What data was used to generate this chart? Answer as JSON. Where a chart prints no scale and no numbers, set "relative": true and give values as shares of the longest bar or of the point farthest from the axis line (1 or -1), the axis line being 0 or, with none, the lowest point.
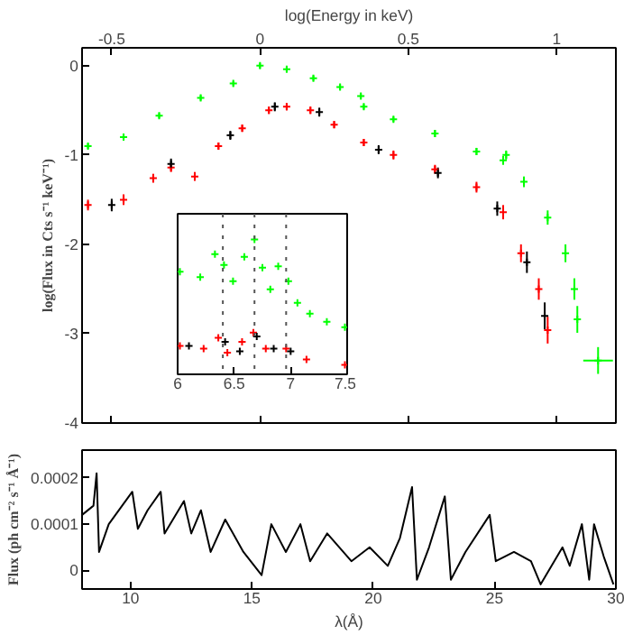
{
  "chart_data": [
    {
      "type": "scatter",
      "xlabel": "log(Energy in keV)",
      "ylabel": "log(Flux in Cts s⁻¹ keV⁻¹)",
      "xlim": [
        -0.6,
        1.2
      ],
      "xticks": [
        -0.5,
        0,
        0.5,
        1
      ],
      "ylim": [
        -4,
        0.2
      ],
      "yticks": [
        -4,
        -3,
        -2,
        -1,
        0
      ],
      "marker": "cross",
      "grid": false,
      "series": [
        {
          "color": "#00ff00",
          "x": [
            -0.58,
            -0.46,
            -0.34,
            -0.2,
            -0.09,
            0.0,
            0.09,
            0.18,
            0.27,
            0.34,
            0.35,
            0.45,
            0.59,
            0.73,
            0.82,
            0.83,
            0.89,
            0.97,
            1.03,
            1.06,
            1.07,
            1.14
          ],
          "values": [
            -0.9,
            -0.8,
            -0.56,
            -0.36,
            -0.2,
            0.0,
            -0.04,
            -0.14,
            -0.24,
            -0.34,
            -0.46,
            -0.6,
            -0.76,
            -0.96,
            -1.06,
            -1.0,
            -1.3,
            -1.7,
            -2.1,
            -2.5,
            -2.84,
            -3.3
          ],
          "errors": [
            0.03,
            0.03,
            0.03,
            0.03,
            0.03,
            0.03,
            0.03,
            0.03,
            0.03,
            0.03,
            0.03,
            0.03,
            0.04,
            0.04,
            0.05,
            0.05,
            0.06,
            0.08,
            0.1,
            0.12,
            0.15,
            0.15
          ],
          "xerrors": [
            null,
            null,
            null,
            null,
            null,
            null,
            null,
            null,
            null,
            null,
            null,
            null,
            null,
            null,
            null,
            null,
            null,
            null,
            null,
            null,
            null,
            0.05
          ]
        },
        {
          "color": "#ff0000",
          "x": [
            -0.58,
            -0.46,
            -0.36,
            -0.3,
            -0.22,
            -0.14,
            -0.06,
            0.03,
            0.09,
            0.17,
            0.25,
            0.35,
            0.45,
            0.59,
            0.73,
            0.82,
            0.88,
            0.94,
            0.97
          ],
          "values": [
            -1.56,
            -1.5,
            -1.26,
            -1.14,
            -1.24,
            -0.9,
            -0.7,
            -0.5,
            -0.46,
            -0.5,
            -0.66,
            -0.86,
            -1.0,
            -1.16,
            -1.36,
            -1.64,
            -2.1,
            -2.5,
            -2.96
          ],
          "errors": [
            0.06,
            0.06,
            0.05,
            0.05,
            0.05,
            0.04,
            0.04,
            0.04,
            0.04,
            0.04,
            0.04,
            0.04,
            0.05,
            0.05,
            0.06,
            0.08,
            0.1,
            0.12,
            0.15
          ]
        },
        {
          "color": "#000000",
          "x": [
            -0.5,
            -0.3,
            -0.1,
            0.05,
            0.2,
            0.4,
            0.6,
            0.8,
            0.9,
            0.96
          ],
          "values": [
            -1.56,
            -1.1,
            -0.78,
            -0.46,
            -0.52,
            -0.94,
            -1.2,
            -1.6,
            -2.2,
            -2.8
          ],
          "errors": [
            0.07,
            0.06,
            0.05,
            0.05,
            0.05,
            0.05,
            0.06,
            0.08,
            0.12,
            0.15
          ]
        }
      ]
    },
    {
      "type": "line",
      "xlabel": "λ(Å)",
      "ylabel": "Flux (ph cm⁻² s⁻¹ Å⁻¹)",
      "xlim": [
        8,
        30
      ],
      "xticks": [
        10,
        15,
        20,
        25,
        30
      ],
      "ylim": [
        -4e-05,
        0.00026
      ],
      "yticks": [
        0,
        0.0001,
        0.0002
      ],
      "grid": false,
      "color": "#000000",
      "x": [
        8.0,
        8.47,
        8.6,
        8.7,
        9.1,
        10.07,
        10.3,
        10.7,
        11.24,
        11.4,
        12.2,
        12.5,
        12.9,
        13.3,
        13.9,
        14.65,
        15.4,
        15.8,
        16.4,
        17.0,
        17.4,
        18.1,
        19.1,
        19.85,
        20.6,
        21.1,
        21.6,
        21.8,
        22.3,
        22.95,
        23.2,
        23.8,
        24.8,
        25.05,
        25.8,
        26.5,
        26.9,
        27.8,
        28.1,
        28.6,
        28.9,
        29.1,
        29.5,
        29.9
      ],
      "values": [
        0.00012,
        0.00014,
        0.00021,
        4e-05,
        0.0001,
        0.00017,
        9e-05,
        0.00013,
        0.00017,
        8e-05,
        0.00015,
        8e-05,
        0.00013,
        4e-05,
        0.00011,
        4e-05,
        -1e-05,
        0.0001,
        4e-05,
        0.0001,
        2e-05,
        8e-05,
        2e-05,
        5e-05,
        1e-05,
        7e-05,
        0.00018,
        -2e-05,
        5e-05,
        0.00016,
        -2e-05,
        4e-05,
        0.00012,
        2e-05,
        4e-05,
        2e-05,
        -3e-05,
        5e-05,
        1e-05,
        0.0001,
        -2e-05,
        0.0001,
        3e-05,
        -3e-05
      ]
    },
    {
      "type": "scatter",
      "relative": true,
      "xlim": [
        6,
        7.5
      ],
      "xticks": [
        6,
        6.5,
        7,
        7.5
      ],
      "marker": "cross",
      "grid": false,
      "ref_lines": [
        {
          "axis": "x",
          "value": 6.4,
          "line_style": "dotted"
        },
        {
          "axis": "x",
          "value": 6.68,
          "line_style": "dotted"
        },
        {
          "axis": "x",
          "value": 6.96,
          "line_style": "dotted"
        }
      ],
      "series": [
        {
          "color": "#00ff00",
          "x": [
            6.02,
            6.2,
            6.33,
            6.41,
            6.49,
            6.59,
            6.68,
            6.75,
            6.82,
            6.89,
            6.98,
            7.06,
            7.17,
            7.32,
            7.48
          ],
          "values": [
            0.76,
            0.72,
            0.89,
            0.81,
            0.69,
            0.87,
            1.0,
            0.79,
            0.63,
            0.8,
            0.69,
            0.53,
            0.45,
            0.39,
            0.35
          ]
        },
        {
          "color": "#ff0000",
          "x": [
            6.02,
            6.23,
            6.36,
            6.44,
            6.57,
            6.67,
            6.78,
            6.96,
            7.14,
            7.48
          ],
          "values": [
            0.21,
            0.19,
            0.27,
            0.16,
            0.24,
            0.31,
            0.19,
            0.19,
            0.11,
            0.07
          ]
        },
        {
          "color": "#000000",
          "x": [
            6.1,
            6.42,
            6.55,
            6.7,
            6.85,
            7.0
          ],
          "values": [
            0.21,
            0.24,
            0.17,
            0.28,
            0.19,
            0.17
          ]
        }
      ]
    }
  ]
}
